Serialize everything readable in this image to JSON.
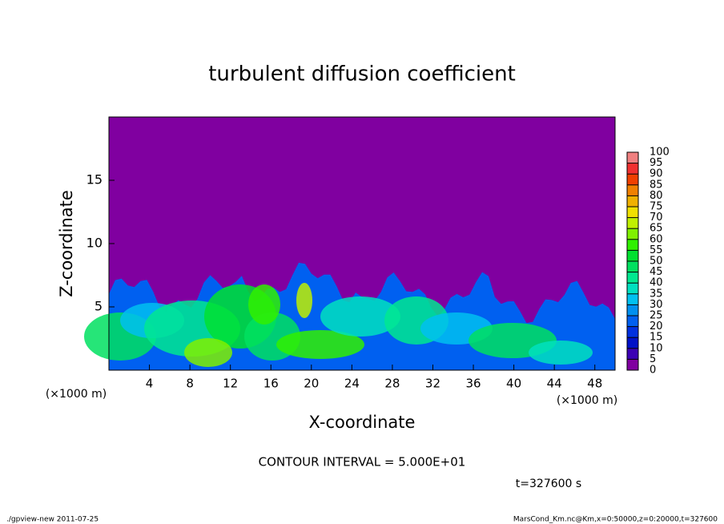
{
  "chart_data": {
    "type": "contour",
    "title": "turbulent diffusion coefficient",
    "xlabel": "X-coordinate",
    "ylabel": "Z-coordinate",
    "x_unit": "(×1000 m)",
    "y_unit": "(×1000 m)",
    "xlim": [
      0,
      50
    ],
    "xticks": [
      4,
      8,
      12,
      16,
      20,
      24,
      28,
      32,
      36,
      40,
      44,
      48
    ],
    "ylim": [
      0,
      20
    ],
    "yticks": [
      5,
      10,
      15
    ],
    "background_color": "#8000a0",
    "colorbar": {
      "levels": [
        0,
        5,
        10,
        15,
        20,
        25,
        30,
        35,
        40,
        45,
        50,
        55,
        60,
        65,
        70,
        75,
        80,
        85,
        90,
        95,
        100
      ],
      "colors": [
        "#8000a0",
        "#3c00b4",
        "#0010c8",
        "#0030e0",
        "#0060f0",
        "#0090f0",
        "#00c0f0",
        "#00e0c0",
        "#00e890",
        "#00e060",
        "#00e030",
        "#30f000",
        "#80f000",
        "#c0f000",
        "#f0e000",
        "#f0b000",
        "#f08000",
        "#f04000",
        "#f03030",
        "#f08080"
      ]
    },
    "contour_interval": "CONTOUR INTERVAL = 5.000E+01",
    "time_label": "t=327600 s",
    "footer_left": "./gpview-new  2011-07-25",
    "footer_right": "MarsCond_Km.nc@Km,x=0:50000,z=0:20000,t=327600"
  }
}
